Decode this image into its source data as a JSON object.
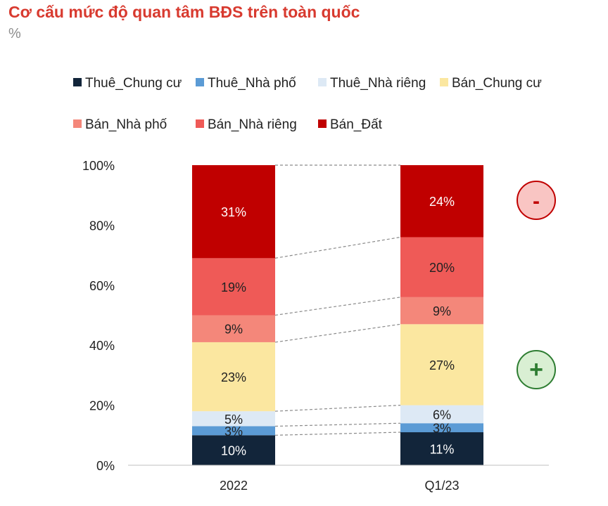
{
  "title": "Cơ cấu mức độ quan tâm BĐS trên toàn quốc",
  "unit": "%",
  "chart_data": {
    "type": "bar",
    "stacked": true,
    "categories": [
      "2022",
      "Q1/23"
    ],
    "series": [
      {
        "name": "Thuê_Chung cư",
        "color": "#12253a",
        "values": [
          10,
          11
        ],
        "labels": [
          "10%",
          "11%"
        ],
        "label_color": "#ffffff"
      },
      {
        "name": "Thuê_Nhà phố",
        "color": "#5b9bd5",
        "values": [
          3,
          3
        ],
        "labels": [
          "3%",
          "3%"
        ],
        "label_color": "#222222"
      },
      {
        "name": "Thuê_Nhà riêng",
        "color": "#dde9f5",
        "values": [
          5,
          6
        ],
        "labels": [
          "5%",
          "6%"
        ],
        "label_color": "#222222"
      },
      {
        "name": "Bán_Chung cư",
        "color": "#fbe7a0",
        "values": [
          23,
          27
        ],
        "labels": [
          "23%",
          "27%"
        ],
        "label_color": "#222222"
      },
      {
        "name": "Bán_Nhà phố",
        "color": "#f4877a",
        "values": [
          9,
          9
        ],
        "labels": [
          "9%",
          "9%"
        ],
        "label_color": "#222222"
      },
      {
        "name": "Bán_Nhà riêng",
        "color": "#ef5a57",
        "values": [
          19,
          20
        ],
        "labels": [
          "19%",
          "20%"
        ],
        "label_color": "#222222"
      },
      {
        "name": "Bán_Đất",
        "color": "#c00000",
        "values": [
          31,
          24
        ],
        "labels": [
          "31%",
          "24%"
        ],
        "label_color": "#ffffff"
      }
    ],
    "y_ticks": [
      "0%",
      "20%",
      "40%",
      "60%",
      "80%",
      "100%"
    ],
    "ylim": [
      0,
      100
    ],
    "grid": false,
    "legend_position": "top",
    "connector_lines": true
  },
  "badges": [
    {
      "symbol": "-",
      "fill": "#f9c5c3",
      "stroke": "#c00000",
      "text_color": "#c00000"
    },
    {
      "symbol": "+",
      "fill": "#d9efd3",
      "stroke": "#2e7d32",
      "text_color": "#2e7d32"
    }
  ]
}
